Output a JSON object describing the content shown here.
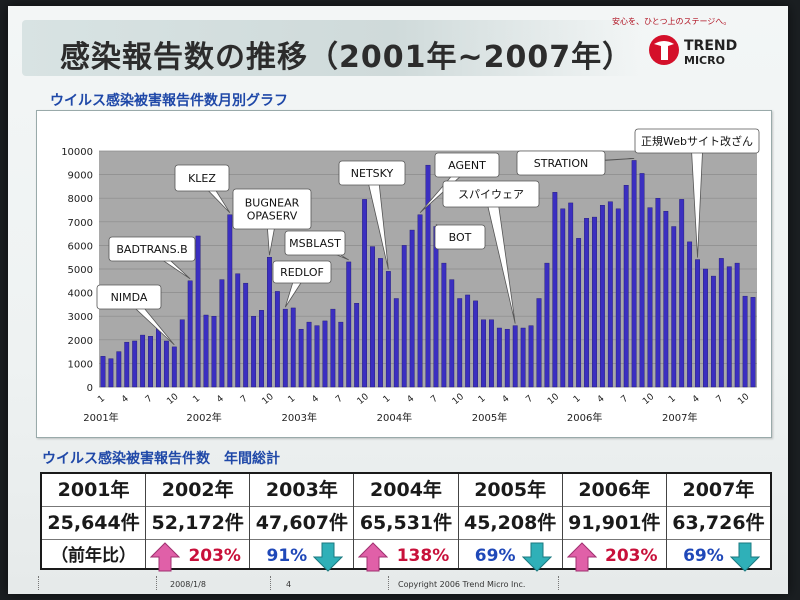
{
  "slide": {
    "title": "感染報告数の推移（2001年~2007年）",
    "tagline": "安心を、ひとつ上のステージへ。",
    "logo": {
      "line1": "TREND",
      "line2": "MICRO"
    },
    "monthly_heading": "ウイルス感染被害報告件数月別グラフ",
    "annual_heading": "ウイルス感染被害報告件数　年間総計"
  },
  "chart_data": {
    "type": "bar",
    "title": "",
    "ylim": [
      0,
      10000
    ],
    "yticks": [
      0,
      1000,
      2000,
      3000,
      4000,
      5000,
      6000,
      7000,
      8000,
      9000,
      10000
    ],
    "month_ticks": [
      "1",
      "4",
      "7",
      "10"
    ],
    "year_labels": [
      "2001年",
      "2002年",
      "2003年",
      "2004年",
      "2005年",
      "2006年",
      "2007年"
    ],
    "values": [
      1300,
      1200,
      1500,
      1900,
      1950,
      2200,
      2150,
      2500,
      1950,
      1700,
      2850,
      4500,
      6400,
      3050,
      3000,
      4550,
      7300,
      4800,
      4400,
      3000,
      3250,
      5500,
      4050,
      3300,
      3350,
      2450,
      2750,
      2600,
      2800,
      3300,
      2750,
      5300,
      3550,
      7950,
      5950,
      5450,
      4900,
      3750,
      6000,
      6650,
      7300,
      9400,
      6800,
      5250,
      4550,
      3750,
      3900,
      3650,
      2850,
      2850,
      2500,
      2450,
      2600,
      2500,
      2600,
      3750,
      5250,
      8250,
      7550,
      7800,
      6300,
      7150,
      7200,
      7700,
      7850,
      7550,
      8550,
      9600,
      9050,
      7600,
      8000,
      7450,
      6800,
      7950,
      6150,
      5400,
      5000,
      4700,
      5450,
      5100,
      5250,
      3850,
      3800
    ],
    "annotations": [
      {
        "label": "NIMDA",
        "index": 9
      },
      {
        "label": "BADTRANS.B",
        "index": 11
      },
      {
        "label": "KLEZ",
        "index": 16
      },
      {
        "label": "BUGNEAR\nOPASERV",
        "index": 21
      },
      {
        "label": "REDLOF",
        "index": 23
      },
      {
        "label": "MSBLAST",
        "index": 31
      },
      {
        "label": "NETSKY",
        "index": 36
      },
      {
        "label": "AGENT",
        "index": 40
      },
      {
        "label": "BOT",
        "index": 42
      },
      {
        "label": "スパイウェア",
        "index": 52
      },
      {
        "label": "STRATION",
        "index": 67
      },
      {
        "label": "正規Webサイト改ざん",
        "index": 75
      }
    ]
  },
  "annual": [
    {
      "year": "2001年",
      "count": "25,644件",
      "ratio": "（前年比）",
      "trend": "label"
    },
    {
      "year": "2002年",
      "count": "52,172件",
      "ratio": "203%",
      "trend": "up"
    },
    {
      "year": "2003年",
      "count": "47,607件",
      "ratio": "91%",
      "trend": "down"
    },
    {
      "year": "2004年",
      "count": "65,531件",
      "ratio": "138%",
      "trend": "up"
    },
    {
      "year": "2005年",
      "count": "45,208件",
      "ratio": "69%",
      "trend": "down"
    },
    {
      "year": "2006年",
      "count": "91,901件",
      "ratio": "203%",
      "trend": "up"
    },
    {
      "year": "2007年",
      "count": "63,726件",
      "ratio": "69%",
      "trend": "down"
    }
  ],
  "footer": {
    "date": "2008/1/8",
    "page": "4",
    "copyright": "Copyright 2006 Trend Micro Inc."
  },
  "colors": {
    "bar": "#3b2fc0",
    "plot_bg": "#a9a9a9",
    "up_arrow": "#e060a8",
    "down_arrow": "#2fb0b8",
    "heading": "#1f48a8"
  }
}
